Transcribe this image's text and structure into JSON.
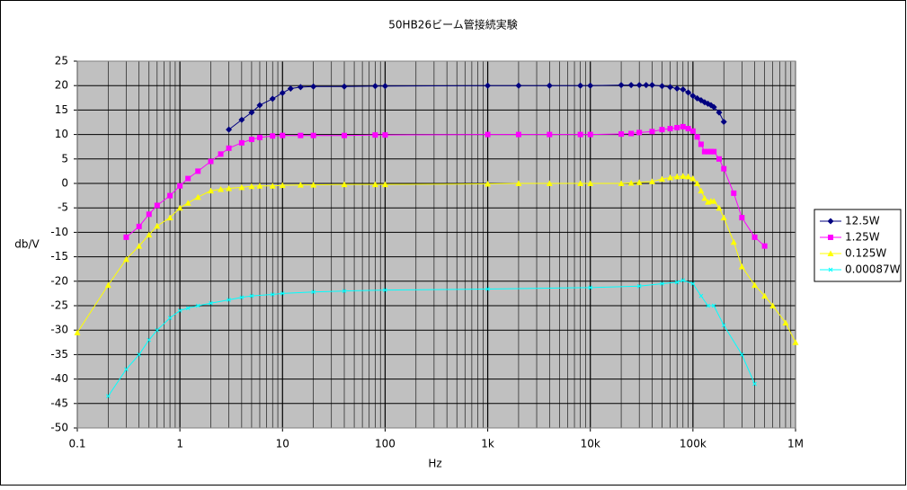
{
  "chart_data": {
    "type": "line",
    "title": "50HB26ビーム管接続実験",
    "x_label": "Hz",
    "y_label": "db/V",
    "log_x": true,
    "grid": true,
    "legend": "right",
    "xlim": [
      0.1,
      1000000
    ],
    "ylim": [
      -50,
      25
    ],
    "xticks": [
      0.1,
      1,
      10,
      100,
      {
        "value": 1000,
        "label": "1k"
      },
      {
        "value": 10000,
        "label": "10k"
      },
      {
        "value": 100000,
        "label": "100k"
      },
      {
        "value": 1000000,
        "label": "1M"
      }
    ],
    "yticks": [
      -50,
      -45,
      -40,
      -35,
      -30,
      -25,
      -20,
      -15,
      -10,
      -5,
      0,
      5,
      10,
      15,
      20,
      25
    ],
    "series": [
      {
        "name": "12.5W",
        "color": "#000080",
        "marker": "diamond",
        "x": [
          3,
          4,
          5,
          6,
          8,
          10,
          12,
          15,
          20,
          40,
          80,
          100,
          1000,
          2000,
          4000,
          8000,
          10000,
          20000,
          25000,
          30000,
          35000,
          40000,
          50000,
          60000,
          70000,
          80000,
          90000,
          100000,
          110000,
          120000,
          130000,
          140000,
          150000,
          160000,
          180000,
          200000
        ],
        "values": [
          11,
          13,
          14.5,
          16,
          17.3,
          18.5,
          19.4,
          19.7,
          19.8,
          19.8,
          19.9,
          19.9,
          20,
          20,
          20,
          20,
          20,
          20.1,
          20.1,
          20.1,
          20.1,
          20.1,
          19.9,
          19.7,
          19.4,
          19.2,
          18.6,
          17.9,
          17.4,
          17,
          16.6,
          16.3,
          16,
          15.6,
          14.5,
          12.6
        ]
      },
      {
        "name": "1.25W",
        "color": "#ff00ff",
        "marker": "square",
        "x": [
          0.3,
          0.4,
          0.5,
          0.6,
          0.8,
          1,
          1.2,
          1.5,
          2,
          2.5,
          3,
          4,
          5,
          6,
          8,
          10,
          15,
          20,
          40,
          80,
          100,
          1000,
          2000,
          4000,
          8000,
          10000,
          20000,
          25000,
          30000,
          40000,
          50000,
          60000,
          70000,
          80000,
          90000,
          100000,
          110000,
          120000,
          130000,
          140000,
          150000,
          160000,
          180000,
          200000,
          250000,
          300000,
          400000,
          500000
        ],
        "values": [
          -11,
          -8.8,
          -6.3,
          -4.5,
          -2.5,
          -0.5,
          1,
          2.5,
          4.5,
          6,
          7.2,
          8.3,
          9,
          9.4,
          9.7,
          9.8,
          9.8,
          9.8,
          9.8,
          9.9,
          9.9,
          10,
          10,
          10,
          10,
          10,
          10.1,
          10.2,
          10.4,
          10.6,
          11,
          11.2,
          11.4,
          11.6,
          11.2,
          10.7,
          9.5,
          8,
          6.5,
          6.5,
          6.5,
          6.5,
          5,
          3,
          -2,
          -7,
          -11,
          -12.8
        ]
      },
      {
        "name": "0.125W",
        "color": "#ffff00",
        "marker": "triangle",
        "x": [
          0.1,
          0.2,
          0.3,
          0.4,
          0.5,
          0.6,
          0.8,
          1,
          1.2,
          1.5,
          2,
          2.5,
          3,
          4,
          5,
          6,
          8,
          10,
          15,
          20,
          40,
          80,
          100,
          1000,
          2000,
          4000,
          8000,
          10000,
          20000,
          25000,
          30000,
          40000,
          50000,
          60000,
          70000,
          80000,
          90000,
          100000,
          110000,
          120000,
          130000,
          140000,
          150000,
          160000,
          180000,
          200000,
          250000,
          300000,
          400000,
          500000,
          600000,
          800000,
          1000000
        ],
        "values": [
          -30.5,
          -20.8,
          -15.5,
          -12.8,
          -10.5,
          -8.7,
          -7,
          -5,
          -4,
          -2.8,
          -1.5,
          -1.2,
          -1,
          -0.8,
          -0.6,
          -0.5,
          -0.5,
          -0.4,
          -0.3,
          -0.3,
          -0.2,
          -0.2,
          -0.2,
          -0.1,
          0,
          0,
          0,
          0,
          0,
          0.1,
          0.2,
          0.4,
          0.9,
          1.2,
          1.4,
          1.5,
          1.4,
          1,
          0,
          -1.5,
          -3,
          -3.8,
          -3.6,
          -3.6,
          -5,
          -7,
          -12,
          -17,
          -20.8,
          -23,
          -25,
          -28.5,
          -32.5
        ]
      },
      {
        "name": "0.00087W",
        "color": "#00ffff",
        "marker": "x",
        "x": [
          0.2,
          0.3,
          0.4,
          0.5,
          0.6,
          0.8,
          1,
          1.2,
          1.5,
          2,
          3,
          4,
          5,
          8,
          10,
          20,
          40,
          100,
          1000,
          10000,
          30000,
          50000,
          70000,
          80000,
          100000,
          120000,
          140000,
          160000,
          200000,
          300000,
          400000
        ],
        "values": [
          -43.5,
          -38,
          -35,
          -32,
          -30,
          -27.5,
          -26,
          -25.5,
          -25,
          -24.5,
          -23.8,
          -23.3,
          -23,
          -22.7,
          -22.5,
          -22.2,
          -22,
          -21.8,
          -21.6,
          -21.3,
          -21,
          -20.5,
          -20.2,
          -19.8,
          -20.5,
          -23,
          -25,
          -25,
          -29,
          -35,
          -41
        ]
      }
    ]
  }
}
